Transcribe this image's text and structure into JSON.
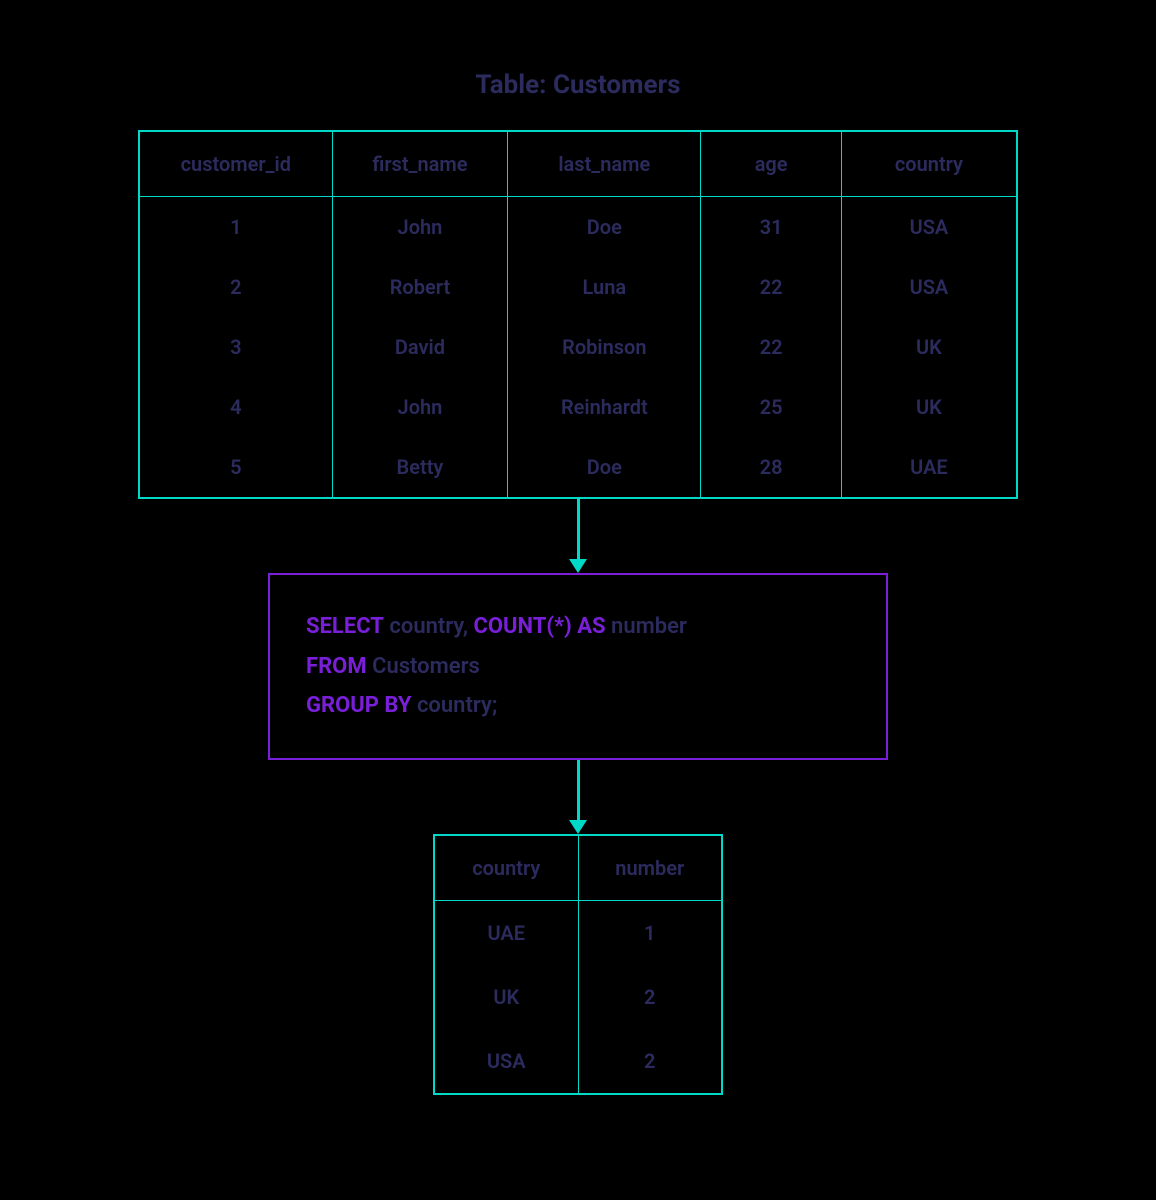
{
  "title": "Table: Customers",
  "colors": {
    "background": "#000000",
    "table_border": "#00d9c8",
    "arrow": "#00d9c8",
    "sql_border": "#7a1fd9",
    "sql_keyword": "#7a1fd9",
    "text": "#2b2b5e"
  },
  "source_table": {
    "type": "table",
    "columns": [
      "customer_id",
      "first_name",
      "last_name",
      "age",
      "country"
    ],
    "rows": [
      [
        "1",
        "John",
        "Doe",
        "31",
        "USA"
      ],
      [
        "2",
        "Robert",
        "Luna",
        "22",
        "USA"
      ],
      [
        "3",
        "David",
        "Robinson",
        "22",
        "UK"
      ],
      [
        "4",
        "John",
        "Reinhardt",
        "25",
        "UK"
      ],
      [
        "5",
        "Betty",
        "Doe",
        "28",
        "UAE"
      ]
    ],
    "col_widths_pct": [
      22,
      20,
      22,
      16,
      20
    ]
  },
  "sql": {
    "tokens": [
      {
        "t": "SELECT",
        "kw": true
      },
      {
        "t": " country, "
      },
      {
        "t": "COUNT(*) AS",
        "kw": true
      },
      {
        "t": " number"
      },
      {
        "br": true
      },
      {
        "t": "FROM",
        "kw": true
      },
      {
        "t": " Customers"
      },
      {
        "br": true
      },
      {
        "t": "GROUP BY",
        "kw": true
      },
      {
        "t": " country;"
      }
    ]
  },
  "result_table": {
    "type": "table",
    "columns": [
      "country",
      "number"
    ],
    "rows": [
      [
        "UAE",
        "1"
      ],
      [
        "UK",
        "2"
      ],
      [
        "USA",
        "2"
      ]
    ],
    "col_widths_pct": [
      50,
      50
    ]
  },
  "arrows": {
    "height1": 60,
    "height2": 60
  }
}
